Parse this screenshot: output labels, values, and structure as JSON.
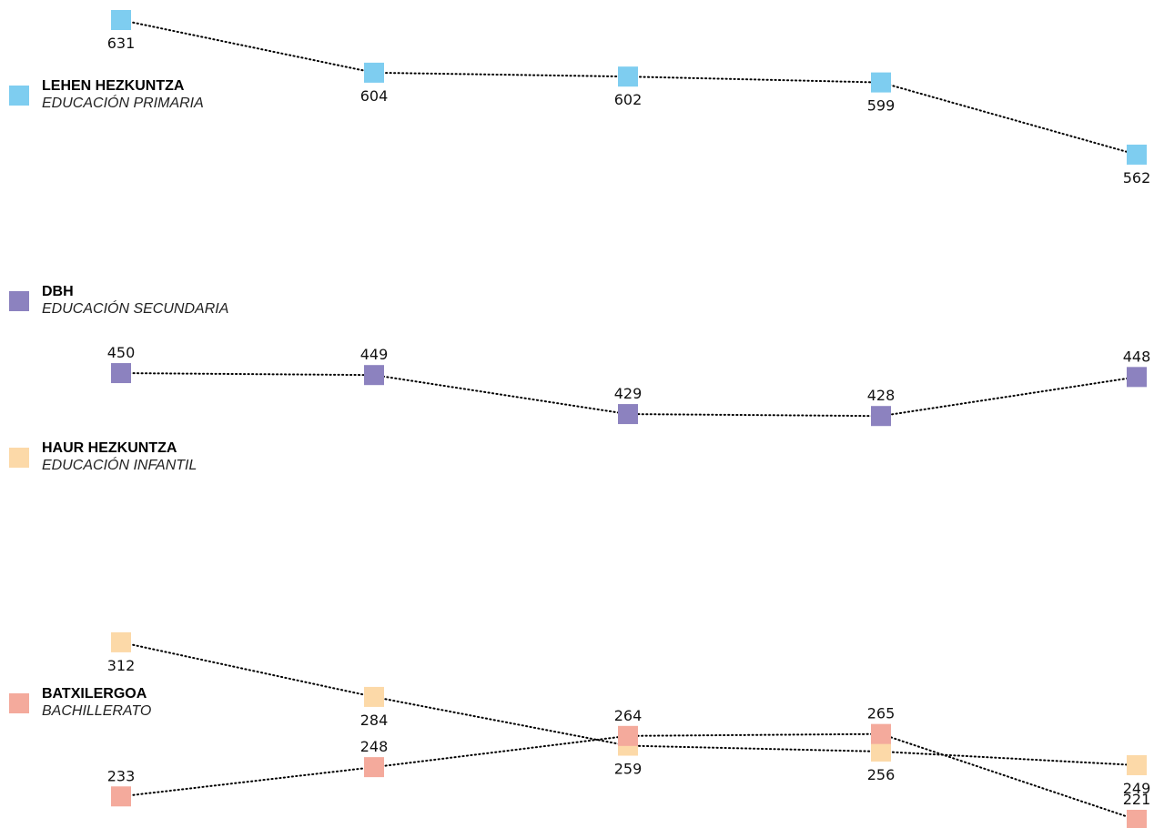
{
  "chart_data": {
    "type": "line",
    "categories": [
      "",
      "",
      "",
      "",
      ""
    ],
    "ylim": [
      221,
      631
    ],
    "grid": false,
    "legend_position": "left",
    "series": [
      {
        "key": "primaria",
        "name": "LEHEN HEZKUNTZA",
        "subname": "EDUCACIÓN PRIMARIA",
        "color": "#7ecdf0",
        "values": [
          631,
          604,
          602,
          599,
          562
        ],
        "value_labels": [
          "631",
          "604",
          "602",
          "599",
          "562"
        ],
        "label_side": [
          "below",
          "below",
          "below",
          "below",
          "below"
        ]
      },
      {
        "key": "secundaria",
        "name": "DBH",
        "subname": "EDUCACIÓN SECUNDARIA",
        "color": "#8c82bf",
        "values": [
          450,
          449,
          429,
          428,
          448
        ],
        "value_labels": [
          "450",
          "449",
          "429",
          "428",
          "448"
        ],
        "label_side": [
          "above",
          "above",
          "above",
          "above",
          "above"
        ]
      },
      {
        "key": "infantil",
        "name": "HAUR HEZKUNTZA",
        "subname": "EDUCACIÓN INFANTIL",
        "color": "#fcd9a8",
        "values": [
          312,
          284,
          259,
          256,
          249
        ],
        "value_labels": [
          "312",
          "284",
          "259",
          "256",
          "249"
        ],
        "label_side": [
          "below",
          "below",
          "below",
          "below",
          "below"
        ]
      },
      {
        "key": "bachillerato",
        "name": "BATXILERGOA",
        "subname": "BACHILLERATO",
        "color": "#f4aa9c",
        "values": [
          233,
          248,
          264,
          265,
          221
        ],
        "value_labels": [
          "233",
          "248",
          "264",
          "265",
          "221"
        ],
        "label_side": [
          "above",
          "above",
          "above",
          "above",
          "above"
        ]
      }
    ]
  }
}
